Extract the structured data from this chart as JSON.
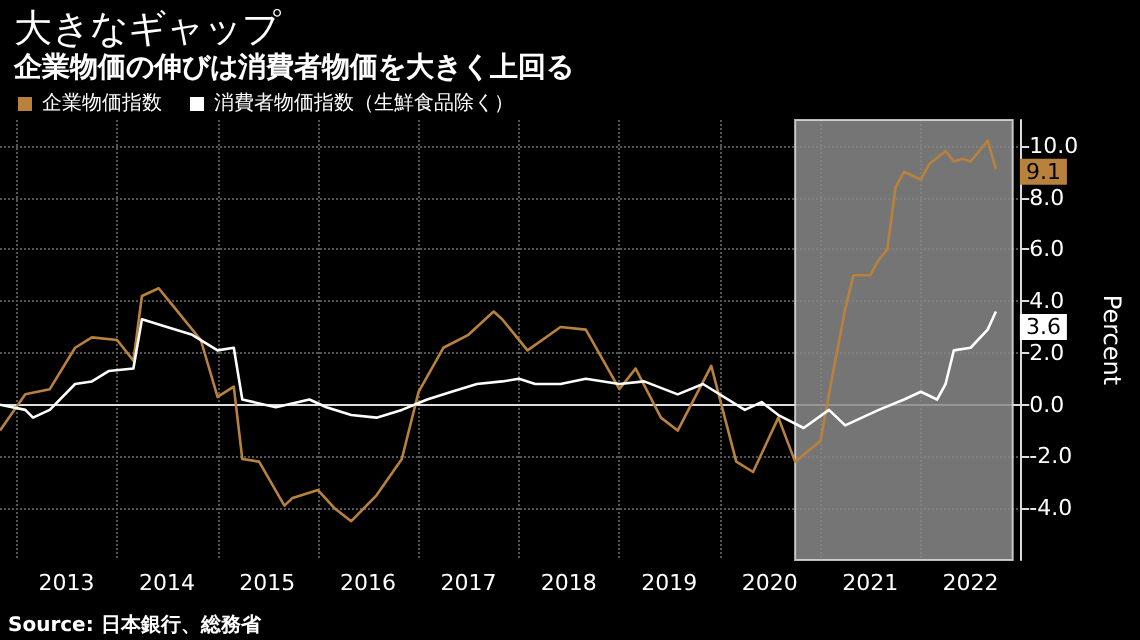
{
  "chart_data": {
    "type": "line",
    "title": "大きなギャップ",
    "subtitle": "企業物価の伸びは消費者物価を大きく上回る",
    "ylabel": "Percent",
    "annotations": [
      "Source: 日本銀行、総務省"
    ],
    "xlim": [
      "2012-11",
      "2023-01"
    ],
    "xticks": [
      {
        "value": "2013-01",
        "label": null
      },
      {
        "value": "2013-07",
        "label": "2013"
      },
      {
        "value": "2014-01",
        "label": null
      },
      {
        "value": "2014-07",
        "label": "2014"
      },
      {
        "value": "2015-01",
        "label": null
      },
      {
        "value": "2015-07",
        "label": "2015"
      },
      {
        "value": "2016-01",
        "label": null
      },
      {
        "value": "2016-07",
        "label": "2016"
      },
      {
        "value": "2017-01",
        "label": null
      },
      {
        "value": "2017-07",
        "label": "2017"
      },
      {
        "value": "2018-01",
        "label": null
      },
      {
        "value": "2018-07",
        "label": "2018"
      },
      {
        "value": "2019-01",
        "label": null
      },
      {
        "value": "2019-07",
        "label": "2019"
      },
      {
        "value": "2020-01",
        "label": null
      },
      {
        "value": "2020-07",
        "label": "2020"
      },
      {
        "value": "2021-01",
        "label": null
      },
      {
        "value": "2021-07",
        "label": "2021"
      },
      {
        "value": "2022-01",
        "label": null
      },
      {
        "value": "2022-07",
        "label": "2022"
      },
      {
        "value": "2023-01",
        "label": null
      }
    ],
    "ylim": [
      -6,
      11
    ],
    "yticks": [
      {
        "value": -4,
        "label": "-4.0"
      },
      {
        "value": -2,
        "label": "-2.0"
      },
      {
        "value": 0,
        "label": "0.0"
      },
      {
        "value": 2,
        "label": "2.0"
      },
      {
        "value": 4,
        "label": "4.0"
      },
      {
        "value": 6,
        "label": "6.0"
      },
      {
        "value": 8,
        "label": "8.0"
      },
      {
        "value": 10,
        "label": "10.0"
      }
    ],
    "grid": true,
    "legend": "top left",
    "bands": [
      {
        "axis": "x",
        "from": "2020-10",
        "to": "2022-12",
        "color": "#8a8a8a"
      }
    ],
    "series": [
      {
        "name": "企業物価指数",
        "color": "#b9823c",
        "x": [
          "2012-11",
          "2013-02",
          "2013-05",
          "2013-08",
          "2013-10",
          "2014-01",
          "2014-03",
          "2014-04",
          "2014-06",
          "2014-08",
          "2014-11",
          "2015-01",
          "2015-03",
          "2015-04",
          "2015-06",
          "2015-09",
          "2015-10",
          "2016-01",
          "2016-03",
          "2016-05",
          "2016-08",
          "2016-11",
          "2017-01",
          "2017-04",
          "2017-07",
          "2017-10",
          "2017-11",
          "2018-02",
          "2018-06",
          "2018-09",
          "2019-01",
          "2019-03",
          "2019-06",
          "2019-08",
          "2019-12",
          "2020-03",
          "2020-05",
          "2020-08",
          "2020-10",
          "2021-01",
          "2021-02",
          "2021-04",
          "2021-05",
          "2021-07",
          "2021-08",
          "2021-09",
          "2021-10",
          "2021-11",
          "2022-01",
          "2022-02",
          "2022-04",
          "2022-05",
          "2022-06",
          "2022-07",
          "2022-09",
          "2022-10"
        ],
        "values": [
          -1.0,
          0.4,
          0.6,
          2.2,
          2.6,
          2.5,
          1.7,
          4.2,
          4.5,
          3.7,
          2.5,
          0.3,
          0.7,
          -2.1,
          -2.2,
          -3.9,
          -3.6,
          -3.3,
          -4.0,
          -4.5,
          -3.5,
          -2.1,
          0.5,
          2.2,
          2.7,
          3.6,
          3.3,
          2.1,
          3.0,
          2.9,
          0.6,
          1.4,
          -0.5,
          -1.0,
          1.5,
          -2.2,
          -2.6,
          -0.5,
          -2.2,
          -1.4,
          0.4,
          3.7,
          5.0,
          5.0,
          5.6,
          6.0,
          8.4,
          9.0,
          8.7,
          9.3,
          9.8,
          9.4,
          9.5,
          9.4,
          10.2,
          9.1
        ],
        "value_labels": [
          null,
          null,
          null,
          null,
          null,
          null,
          null,
          null,
          null,
          null,
          null,
          null,
          null,
          null,
          null,
          null,
          null,
          null,
          null,
          null,
          null,
          null,
          null,
          null,
          null,
          null,
          null,
          null,
          null,
          null,
          null,
          null,
          null,
          null,
          null,
          null,
          null,
          null,
          null,
          null,
          null,
          null,
          null,
          null,
          null,
          null,
          null,
          null,
          null,
          null,
          null,
          null,
          null,
          null,
          null,
          "9.1"
        ]
      },
      {
        "name": "消費者物価指数（生鮮食品除く）",
        "color": "#ffffff",
        "x": [
          "2012-11",
          "2013-02",
          "2013-03",
          "2013-05",
          "2013-08",
          "2013-10",
          "2013-12",
          "2014-03",
          "2014-04",
          "2014-07",
          "2014-10",
          "2015-01",
          "2015-03",
          "2015-04",
          "2015-08",
          "2015-12",
          "2016-02",
          "2016-05",
          "2016-08",
          "2016-11",
          "2017-02",
          "2017-05",
          "2017-08",
          "2017-11",
          "2018-01",
          "2018-03",
          "2018-06",
          "2018-09",
          "2019-01",
          "2019-04",
          "2019-08",
          "2019-11",
          "2020-04",
          "2020-06",
          "2020-08",
          "2020-11",
          "2021-02",
          "2021-04",
          "2021-08",
          "2021-11",
          "2022-01",
          "2022-03",
          "2022-04",
          "2022-05",
          "2022-07",
          "2022-09",
          "2022-10"
        ],
        "values": [
          0.0,
          -0.2,
          -0.5,
          -0.2,
          0.8,
          0.9,
          1.3,
          1.4,
          3.3,
          3.0,
          2.7,
          2.1,
          2.2,
          0.2,
          -0.1,
          0.2,
          -0.1,
          -0.4,
          -0.5,
          -0.2,
          0.2,
          0.5,
          0.8,
          0.9,
          1.0,
          0.8,
          0.8,
          1.0,
          0.8,
          0.9,
          0.4,
          0.8,
          -0.2,
          0.1,
          -0.4,
          -0.9,
          -0.2,
          -0.8,
          -0.2,
          0.2,
          0.5,
          0.2,
          0.8,
          2.1,
          2.2,
          2.9,
          3.6
        ],
        "value_labels": [
          null,
          null,
          null,
          null,
          null,
          null,
          null,
          null,
          null,
          null,
          null,
          null,
          null,
          null,
          null,
          null,
          null,
          null,
          null,
          null,
          null,
          null,
          null,
          null,
          null,
          null,
          null,
          null,
          null,
          null,
          null,
          null,
          null,
          null,
          null,
          null,
          null,
          null,
          null,
          null,
          null,
          null,
          null,
          null,
          null,
          null,
          "3.6"
        ]
      }
    ]
  }
}
